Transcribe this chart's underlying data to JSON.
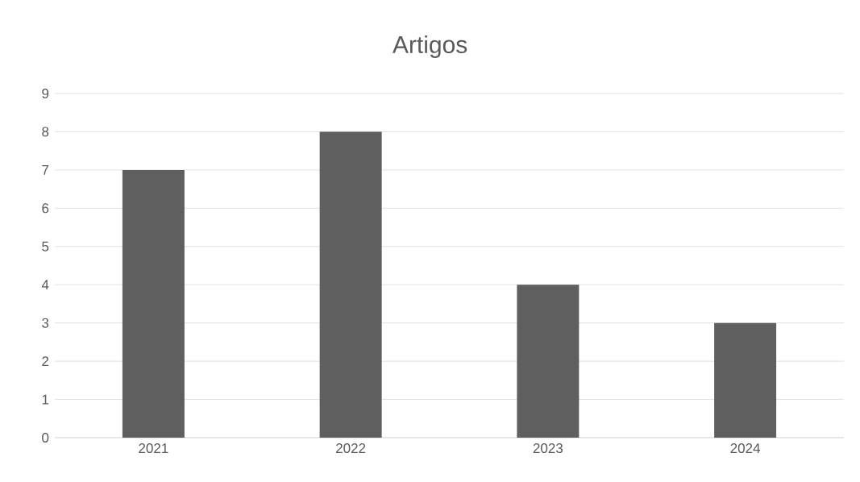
{
  "chart_data": {
    "type": "bar",
    "title": "Artigos",
    "categories": [
      "2021",
      "2022",
      "2023",
      "2024"
    ],
    "values": [
      7,
      8,
      4,
      3
    ],
    "color": "#5f5f5f",
    "ylim": [
      0,
      9
    ],
    "yticks": [
      0,
      1,
      2,
      3,
      4,
      5,
      6,
      7,
      8,
      9
    ],
    "grid": "y"
  }
}
